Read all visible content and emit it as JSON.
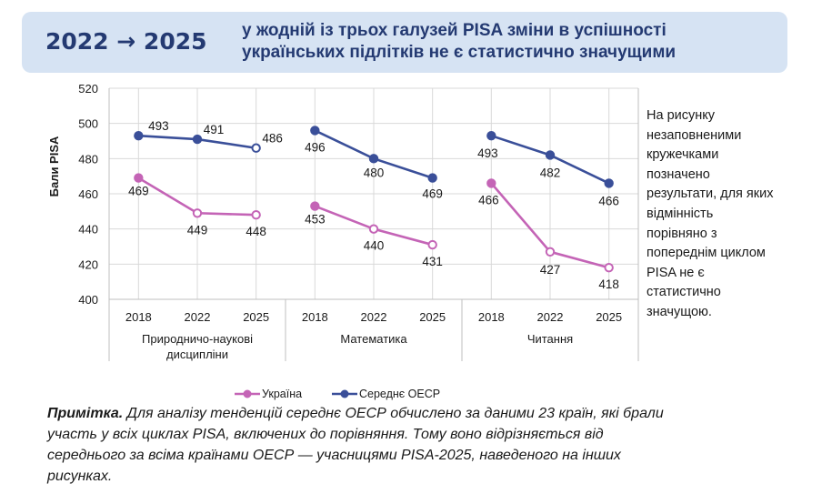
{
  "banner": {
    "years": "2022 → 2025",
    "line1": "у жодній із трьох галузей PISA зміни в успішності",
    "line2": "українських підлітків не є статистично значущими"
  },
  "side_note": {
    "lines": [
      "На рисунку",
      "незаповненими",
      "кружечками",
      "позначено",
      "результати, для яких",
      "відмінність",
      "порівняно з",
      "попереднім циклом",
      "PISA не є",
      "статистично",
      "значущою."
    ]
  },
  "footnote": {
    "label": "Примітка.",
    "lines": [
      "Для аналізу тенденцій середнє ОЕСР обчислено за даними 23 країн, які брали",
      "участь у всіх циклах PISA, включених до порівняння. Тому воно відрізняється від",
      "середнього за всіма країнами ОЕСР — учасницями PISA-2025, наведеного на інших",
      "рисунках."
    ]
  },
  "chart_data": {
    "type": "line",
    "ylabel": "Бали PISA",
    "ylim": [
      400,
      520
    ],
    "yticks": [
      400,
      420,
      440,
      460,
      480,
      500,
      520
    ],
    "grid": true,
    "legend": "bottom",
    "groups": [
      {
        "label": [
          "Природничо-наукові",
          "дисципліни"
        ],
        "x": [
          "2018",
          "2022",
          "2025"
        ]
      },
      {
        "label": [
          "Математика"
        ],
        "x": [
          "2018",
          "2022",
          "2025"
        ]
      },
      {
        "label": [
          "Читання"
        ],
        "x": [
          "2018",
          "2022",
          "2025"
        ]
      }
    ],
    "series": [
      {
        "name": "Україна",
        "color": "#c464b6",
        "values": [
          [
            469,
            449,
            448
          ],
          [
            453,
            440,
            431
          ],
          [
            466,
            427,
            418
          ]
        ],
        "open_markers": [
          [
            false,
            true,
            true
          ],
          [
            false,
            true,
            true
          ],
          [
            false,
            true,
            true
          ]
        ]
      },
      {
        "name": "Середнє ОЕСР",
        "color": "#3a4f99",
        "values": [
          [
            493,
            491,
            486
          ],
          [
            496,
            480,
            469
          ],
          [
            493,
            482,
            466
          ]
        ],
        "open_markers": [
          [
            false,
            false,
            true
          ],
          [
            false,
            false,
            false
          ],
          [
            false,
            false,
            false
          ]
        ]
      }
    ]
  }
}
